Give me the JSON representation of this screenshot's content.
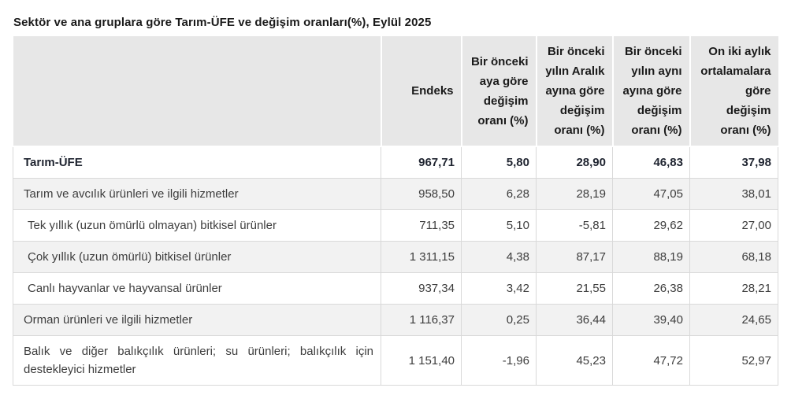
{
  "title": "Sektör ve ana gruplara göre Tarım-ÜFE ve değişim oranları(%), Eylül 2025",
  "colors": {
    "header_bg": "#e7e7e7",
    "row_alt_bg": "#f2f2f2",
    "border": "#d9d9d9",
    "body_text": "#3d3d3d",
    "title_text": "#1a1a1a"
  },
  "chart_data": {
    "type": "table",
    "title": "Sektör ve ana gruplara göre Tarım-ÜFE ve değişim oranları(%), Eylül 2025",
    "columns": [
      "",
      "Endeks",
      "Bir önceki aya göre değişim oranı (%)",
      "Bir önceki yılın Aralık ayına göre değişim oranı (%)",
      "Bir önceki yılın aynı ayına göre değişim oranı (%)",
      "On iki aylık ortalamalara göre değişim oranı (%)"
    ],
    "rows": [
      {
        "label": "Tarım-ÜFE",
        "style": "bold",
        "indent": false,
        "justify": false,
        "values": [
          "967,71",
          "5,80",
          "28,90",
          "46,83",
          "37,98"
        ]
      },
      {
        "label": "Tarım ve avcılık ürünleri ve ilgili hizmetler",
        "style": "normal",
        "indent": false,
        "justify": false,
        "values": [
          "958,50",
          "6,28",
          "28,19",
          "47,05",
          "38,01"
        ]
      },
      {
        "label": "Tek yıllık (uzun ömürlü olmayan) bitkisel ürünler",
        "style": "normal",
        "indent": true,
        "justify": false,
        "values": [
          "711,35",
          "5,10",
          "-5,81",
          "29,62",
          "27,00"
        ]
      },
      {
        "label": "Çok yıllık (uzun ömürlü) bitkisel ürünler",
        "style": "normal",
        "indent": true,
        "justify": false,
        "values": [
          "1 311,15",
          "4,38",
          "87,17",
          "88,19",
          "68,18"
        ]
      },
      {
        "label": "Canlı hayvanlar ve hayvansal ürünler",
        "style": "normal",
        "indent": true,
        "justify": false,
        "values": [
          "937,34",
          "3,42",
          "21,55",
          "26,38",
          "28,21"
        ]
      },
      {
        "label": "Orman ürünleri ve ilgili hizmetler",
        "style": "normal",
        "indent": false,
        "justify": false,
        "values": [
          "1 116,37",
          "0,25",
          "36,44",
          "39,40",
          "24,65"
        ]
      },
      {
        "label": "Balık ve diğer balıkçılık ürünleri; su ürünleri; balıkçılık için destekleyici hizmetler",
        "style": "normal",
        "indent": false,
        "justify": true,
        "values": [
          "1 151,40",
          "-1,96",
          "45,23",
          "47,72",
          "52,97"
        ]
      }
    ]
  }
}
